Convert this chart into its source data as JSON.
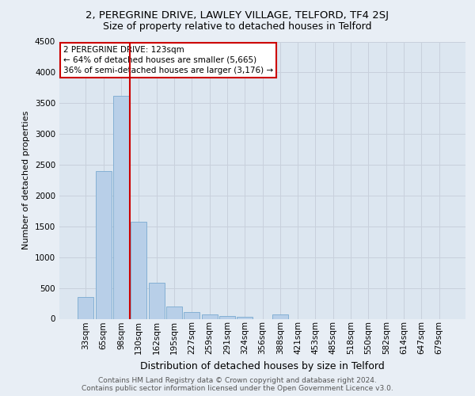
{
  "title_line1": "2, PEREGRINE DRIVE, LAWLEY VILLAGE, TELFORD, TF4 2SJ",
  "title_line2": "Size of property relative to detached houses in Telford",
  "xlabel": "Distribution of detached houses by size in Telford",
  "ylabel": "Number of detached properties",
  "footnote1": "Contains HM Land Registry data © Crown copyright and database right 2024.",
  "footnote2": "Contains public sector information licensed under the Open Government Licence v3.0.",
  "categories": [
    "33sqm",
    "65sqm",
    "98sqm",
    "130sqm",
    "162sqm",
    "195sqm",
    "227sqm",
    "259sqm",
    "291sqm",
    "324sqm",
    "356sqm",
    "388sqm",
    "421sqm",
    "453sqm",
    "485sqm",
    "518sqm",
    "550sqm",
    "582sqm",
    "614sqm",
    "647sqm",
    "679sqm"
  ],
  "values": [
    350,
    2400,
    3620,
    1570,
    590,
    200,
    105,
    65,
    40,
    35,
    0,
    70,
    0,
    0,
    0,
    0,
    0,
    0,
    0,
    0,
    0
  ],
  "bar_color": "#b8cfe8",
  "bar_edge_color": "#7aaad0",
  "annotation_text": "2 PEREGRINE DRIVE: 123sqm\n← 64% of detached houses are smaller (5,665)\n36% of semi-detached houses are larger (3,176) →",
  "annotation_box_facecolor": "#ffffff",
  "annotation_box_edgecolor": "#cc0000",
  "vline_color": "#cc0000",
  "ylim": [
    0,
    4500
  ],
  "yticks": [
    0,
    500,
    1000,
    1500,
    2000,
    2500,
    3000,
    3500,
    4000,
    4500
  ],
  "grid_color": "#c8d0dc",
  "bg_color": "#e8eef5",
  "plot_bg_color": "#dce6f0",
  "title1_fontsize": 9.5,
  "title2_fontsize": 9.0,
  "ylabel_fontsize": 8.0,
  "xlabel_fontsize": 9.0,
  "tick_fontsize": 7.5,
  "annot_fontsize": 7.5,
  "footnote_fontsize": 6.5,
  "vline_x": 2.5
}
